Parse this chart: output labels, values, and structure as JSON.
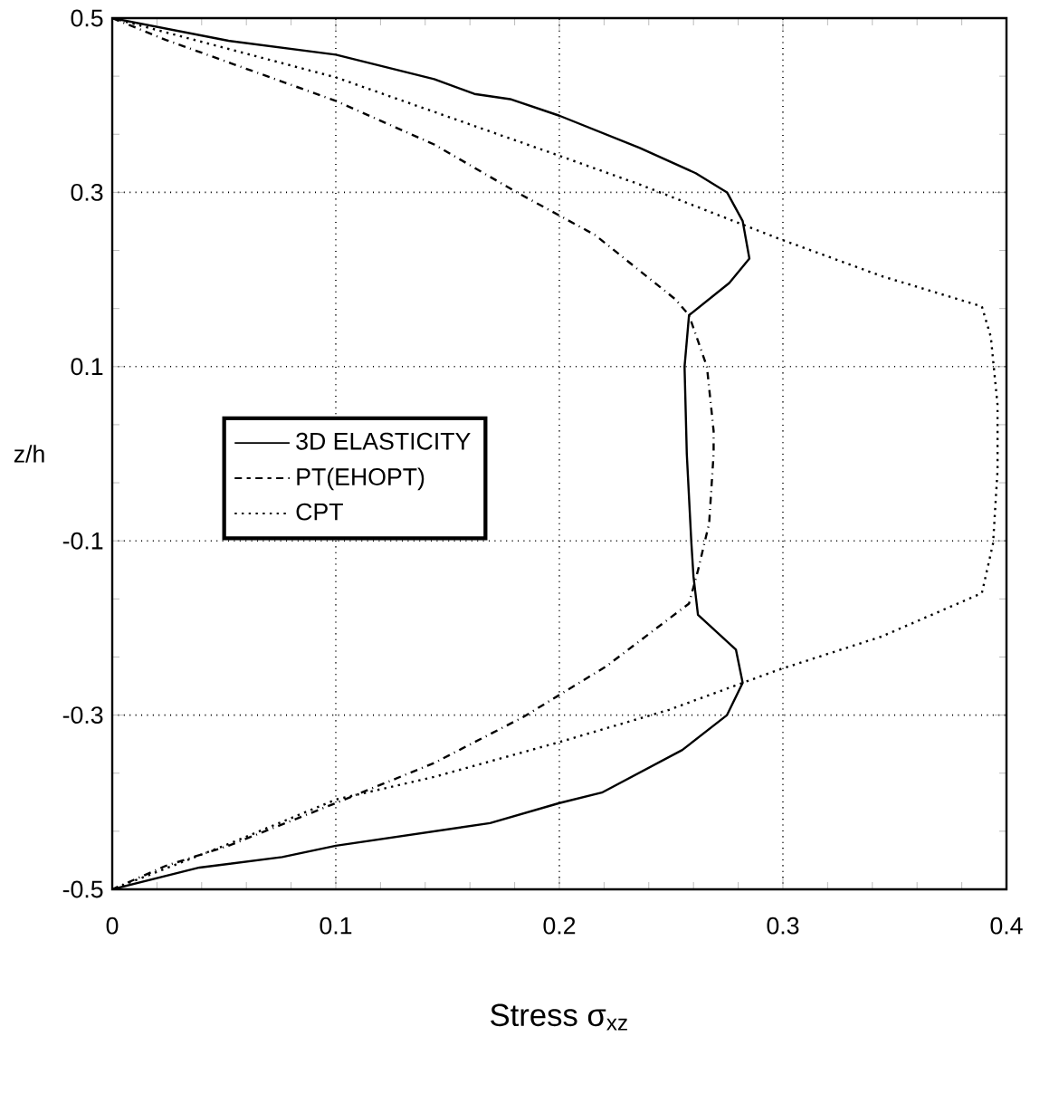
{
  "chart_data": {
    "type": "line",
    "xlabel": "Stress σ$_{xz}$",
    "ylabel": "z/h",
    "xlim": [
      0,
      0.4
    ],
    "ylim": [
      -0.5,
      0.5
    ],
    "xticks": [
      0,
      0.1,
      0.2,
      0.3,
      0.4
    ],
    "yticks": [
      0.5,
      0.3,
      0.1,
      -0.1,
      -0.3,
      -0.5
    ],
    "grid": true,
    "legend": "left",
    "series": [
      {
        "name": "3D ELASTICITY",
        "color": "#000000",
        "line_style": "solid",
        "x": [
          0,
          0.052,
          0.1,
          0.144,
          0.162,
          0.178,
          0.2,
          0.236,
          0.261,
          0.275,
          0.282,
          0.285,
          0.276,
          0.258,
          0.256,
          0.257,
          0.259,
          0.26,
          0.262,
          0.279,
          0.282,
          0.275,
          0.255,
          0.219,
          0.2,
          0.169,
          0.1,
          0.076,
          0.039,
          0
        ],
        "values": [
          0.5,
          0.474,
          0.458,
          0.43,
          0.413,
          0.407,
          0.388,
          0.351,
          0.322,
          0.3,
          0.267,
          0.224,
          0.196,
          0.159,
          0.1,
          0,
          -0.1,
          -0.141,
          -0.185,
          -0.225,
          -0.263,
          -0.3,
          -0.34,
          -0.389,
          -0.401,
          -0.424,
          -0.45,
          -0.463,
          -0.475,
          -0.5
        ]
      },
      {
        "name": "PT(EHOPT)",
        "color": "#000000",
        "line_style": "dashed",
        "x": [
          0,
          0.024,
          0.1,
          0.144,
          0.181,
          0.216,
          0.252,
          0.258,
          0.266,
          0.269,
          0.269,
          0.267,
          0.262,
          0.258,
          0.221,
          0.184,
          0.144,
          0.1,
          0.052,
          0.024,
          0
        ],
        "values": [
          0.5,
          0.475,
          0.405,
          0.355,
          0.3,
          0.251,
          0.177,
          0.159,
          0.1,
          0.026,
          0,
          -0.08,
          -0.134,
          -0.172,
          -0.244,
          -0.302,
          -0.355,
          -0.401,
          -0.45,
          -0.473,
          -0.5
        ]
      },
      {
        "name": "CPT",
        "color": "#000000",
        "line_style": "dotted",
        "x": [
          0,
          0.1,
          0.2,
          0.236,
          0.298,
          0.344,
          0.389,
          0.393,
          0.396,
          0.396,
          0.394,
          0.389,
          0.344,
          0.298,
          0.249,
          0.2,
          0.144,
          0.1,
          0.052,
          0
        ],
        "values": [
          0.5,
          0.432,
          0.342,
          0.309,
          0.247,
          0.204,
          0.169,
          0.134,
          0.056,
          -0.019,
          -0.103,
          -0.16,
          -0.21,
          -0.248,
          -0.294,
          -0.331,
          -0.371,
          -0.397,
          -0.448,
          -0.5
        ]
      }
    ]
  }
}
